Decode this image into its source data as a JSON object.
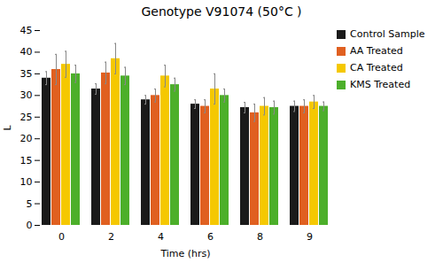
{
  "chart_data": {
    "type": "bar",
    "title": "Genotype V91074 (50°C )",
    "xlabel": "Time (hrs)",
    "ylabel": "L",
    "categories": [
      "0",
      "2",
      "4",
      "6",
      "8",
      "9"
    ],
    "series": [
      {
        "name": "Control Sample",
        "color": "#1a1a1a",
        "values": [
          34.0,
          31.5,
          29.0,
          28.0,
          27.2,
          27.5
        ],
        "errors": [
          1.5,
          1.2,
          1.0,
          1.0,
          1.2,
          1.2
        ]
      },
      {
        "name": "AA Treated",
        "color": "#e06020",
        "values": [
          36.0,
          35.2,
          30.0,
          27.5,
          26.0,
          27.5
        ],
        "errors": [
          3.5,
          2.5,
          1.5,
          1.5,
          2.0,
          1.5
        ]
      },
      {
        "name": "CA Treated",
        "color": "#f5c800",
        "values": [
          37.2,
          38.5,
          34.5,
          31.5,
          27.5,
          28.5
        ],
        "errors": [
          3.0,
          3.5,
          2.5,
          3.5,
          2.0,
          1.5
        ]
      },
      {
        "name": "KMS Treated",
        "color": "#4caf2a",
        "values": [
          35.0,
          34.5,
          32.5,
          30.0,
          27.2,
          27.5
        ],
        "errors": [
          2.0,
          2.0,
          1.5,
          1.5,
          1.5,
          1.0
        ]
      }
    ],
    "ylim": [
      0,
      45
    ],
    "yticks": [
      0,
      5,
      10,
      15,
      20,
      25,
      30,
      35,
      40,
      45
    ],
    "grid": false,
    "legend": "right"
  }
}
